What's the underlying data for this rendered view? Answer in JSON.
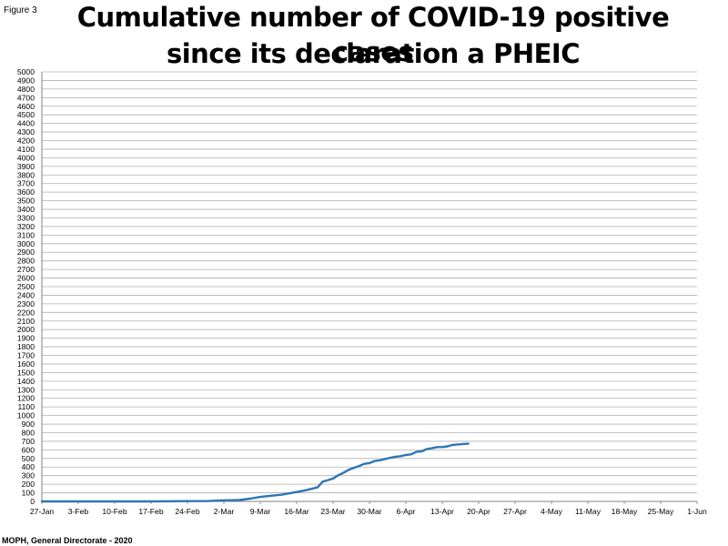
{
  "figure_label": "Figure 3",
  "title_line1": "Cumulative number of COVID-19 positive cases",
  "title_line2": "since its declaration a PHEIC",
  "source": "MOPH, General Directorate - 2020",
  "colors": {
    "line": "#2e75b6",
    "grid": "#b0b0b0",
    "axis": "#808080"
  },
  "chart_data": {
    "type": "line",
    "title": "Cumulative number of COVID-19 positive cases since its declaration a PHEIC",
    "xlabel": "",
    "ylabel": "",
    "ylim": [
      0,
      5000
    ],
    "y_step": 100,
    "xlim": [
      "27-Jan",
      "1-Jun"
    ],
    "x_ticks": [
      "27-Jan",
      "3-Feb",
      "10-Feb",
      "17-Feb",
      "24-Feb",
      "2-Mar",
      "9-Mar",
      "16-Mar",
      "23-Mar",
      "30-Mar",
      "6-Apr",
      "13-Apr",
      "20-Apr",
      "27-Apr",
      "4-May",
      "11-May",
      "18-May",
      "25-May",
      "1-Jun"
    ],
    "grid": true,
    "legend": "none",
    "series": [
      {
        "x": [
          "27-Jan",
          "3-Feb",
          "10-Feb",
          "17-Feb",
          "21-Feb",
          "24-Feb",
          "28-Feb",
          "2-Mar",
          "5-Mar",
          "7-Mar",
          "9-Mar",
          "11-Mar",
          "13-Mar",
          "15-Mar",
          "16-Mar",
          "18-Mar",
          "20-Mar",
          "21-Mar",
          "22-Mar",
          "23-Mar",
          "24-Mar",
          "25-Mar",
          "26-Mar",
          "27-Mar",
          "28-Mar",
          "29-Mar",
          "30-Mar",
          "31-Mar",
          "1-Apr",
          "2-Apr",
          "3-Apr",
          "4-Apr",
          "5-Apr",
          "6-Apr",
          "7-Apr",
          "8-Apr",
          "9-Apr",
          "10-Apr",
          "11-Apr",
          "12-Apr",
          "13-Apr",
          "14-Apr",
          "15-Apr",
          "16-Apr",
          "17-Apr",
          "18-Apr"
        ],
        "y": [
          0,
          0,
          0,
          0,
          2,
          3,
          4,
          13,
          16,
          32,
          52,
          66,
          77,
          99,
          109,
          133,
          163,
          230,
          248,
          267,
          304,
          333,
          368,
          391,
          412,
          438,
          446,
          470,
          479,
          494,
          508,
          520,
          527,
          541,
          548,
          576,
          582,
          609,
          619,
          632,
          632,
          641,
          658,
          663,
          668,
          672
        ]
      }
    ]
  }
}
